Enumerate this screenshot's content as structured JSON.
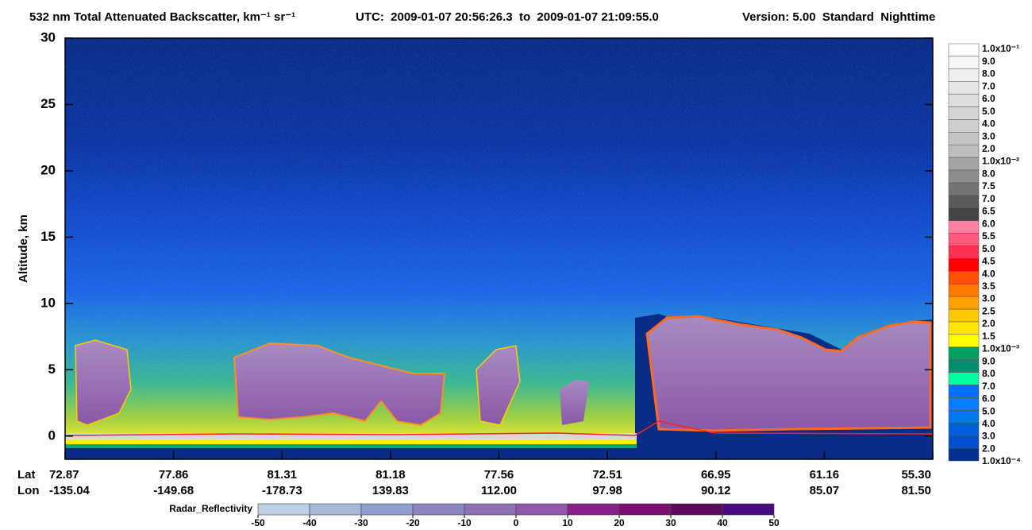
{
  "chart_data": {
    "type": "curtain",
    "title": "532 nm Total Attenuated Backscatter, km⁻¹ sr⁻¹",
    "time_range": "UTC:  2009-01-07 20:56:26.3  to  2009-01-07 21:09:55.0",
    "version": "Version: 5.00  Standard  Nighttime",
    "ylabel": "Altitude, km",
    "ylim": [
      -1.75,
      30
    ],
    "yticks": [
      0,
      5,
      10,
      15,
      20,
      25,
      30
    ],
    "row_labels": [
      "Lat",
      "Lon"
    ],
    "lat": [
      "72.87",
      "77.86",
      "81.31",
      "81.18",
      "77.56",
      "72.51",
      "66.95",
      "61.16",
      "55.30"
    ],
    "lon": [
      "-135.04",
      "-149.68",
      "-178.73",
      "139.83",
      "112.00",
      "97.98",
      "90.12",
      "85.07",
      "81.50"
    ],
    "colorbar": {
      "labels": [
        "1.0x10⁻¹",
        "9.0",
        "8.0",
        "7.0",
        "6.0",
        "5.0",
        "4.0",
        "3.0",
        "2.0",
        "1.0x10⁻²",
        "8.0",
        "7.5",
        "7.0",
        "6.5",
        "6.0",
        "5.5",
        "5.0",
        "4.5",
        "4.0",
        "3.5",
        "3.0",
        "2.5",
        "2.0",
        "1.5",
        "1.0x10⁻³",
        "9.0",
        "8.0",
        "7.0",
        "6.0",
        "5.0",
        "4.0",
        "3.0",
        "2.0",
        "1.0x10⁻⁴"
      ],
      "colors": [
        "#ffffff",
        "#f7f7f7",
        "#efefef",
        "#e6e6e6",
        "#dedede",
        "#d6d6d6",
        "#cecece",
        "#c5c5c5",
        "#bdbdbd",
        "#a5a5a5",
        "#8c8c8c",
        "#737373",
        "#5a5a5a",
        "#444444",
        "#ff80a0",
        "#ff5a7a",
        "#ff3050",
        "#ff0000",
        "#ff5000",
        "#ff7800",
        "#ffa000",
        "#ffc800",
        "#ffe600",
        "#ffff00",
        "#00a060",
        "#009070",
        "#00ffa0",
        "#0070ff",
        "#0080ff",
        "#0078f0",
        "#0060e0",
        "#0050d0",
        "#003090"
      ]
    },
    "radar_colorbar": {
      "label": "Radar_Reflectivity",
      "ticks": [
        -50,
        -40,
        -30,
        -20,
        -10,
        0,
        10,
        20,
        30,
        40,
        50
      ],
      "colors": [
        "#c0d0e4",
        "#a6b8d8",
        "#90a0cc",
        "#8a86c2",
        "#8e70b4",
        "#9058a6",
        "#8a1f88",
        "#7a0f70",
        "#5e0a58",
        "#4a0a80"
      ]
    }
  }
}
